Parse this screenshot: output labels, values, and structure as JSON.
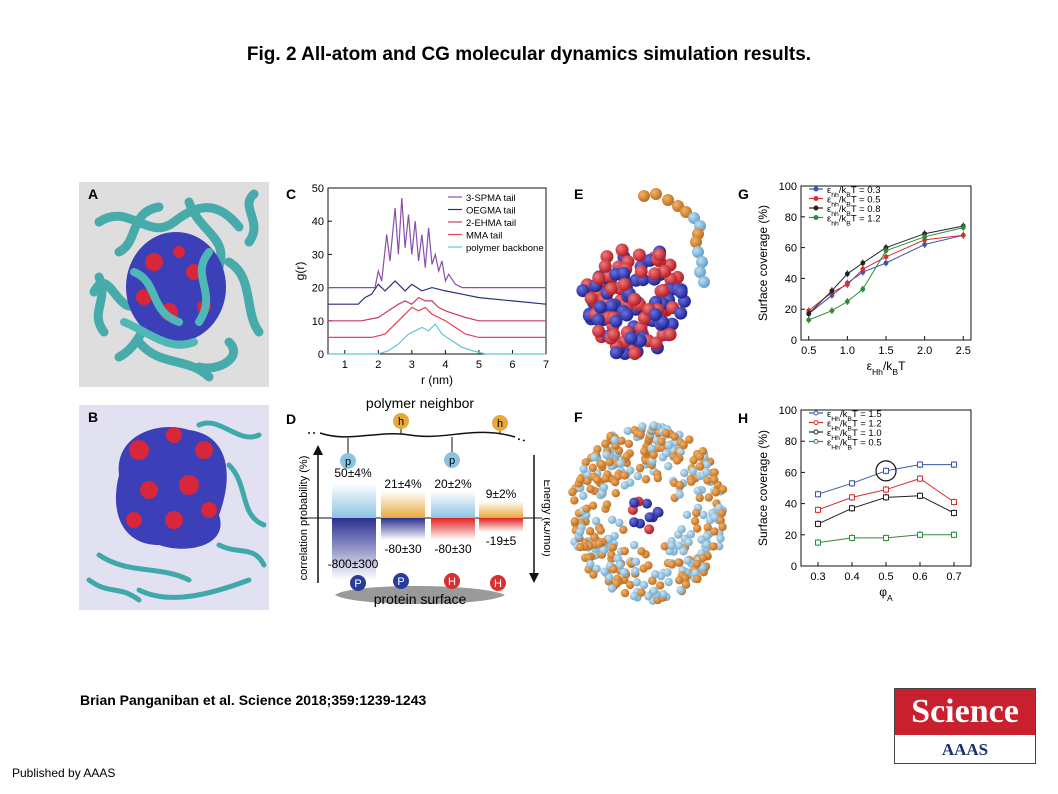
{
  "title": "Fig. 2 All-atom and CG molecular dynamics simulation results.",
  "citation": "Brian Panganiban et al. Science 2018;359:1239-1243",
  "publisher": "Published by AAAS",
  "logo": {
    "name": "Science",
    "sub": "AAAS"
  },
  "panel_labels": {
    "A": "A",
    "B": "B",
    "C": "C",
    "D": "D",
    "E": "E",
    "F": "F",
    "G": "G",
    "H": "H"
  },
  "colors": {
    "cyan": "#3fa9a9",
    "blue": "#3b3fb8",
    "red": "#d8263a",
    "orange": "#d98b2b",
    "lightblue": "#8cc3e3"
  },
  "panel_d": {
    "top_label": "polymer neighbor",
    "bottom_label": "protein surface",
    "left_axis": "correlation probability (%)",
    "right_axis": "Energy (kJ/mol)",
    "bead_top": [
      "p",
      "h",
      "p",
      "h"
    ],
    "bead_bottom": [
      "P",
      "P",
      "H",
      "H"
    ],
    "prob_labels": [
      "50±4%",
      "21±4%",
      "20±2%",
      "9±2%"
    ],
    "prob_values": [
      50,
      21,
      20,
      9
    ],
    "energy_labels": [
      "-800±300",
      "-80±30",
      "-80±30",
      "-19±5"
    ],
    "energy_values": [
      -800,
      -80,
      -80,
      -19
    ]
  },
  "chart_data": [
    {
      "panel": "C",
      "type": "line",
      "xlabel": "r (nm)",
      "ylabel": "g(r)",
      "xlim": [
        0.5,
        7
      ],
      "ylim": [
        0,
        50
      ],
      "xticks": [
        "1",
        "2",
        "3",
        "4",
        "5",
        "6",
        "7"
      ],
      "yticks": [
        "0",
        "10",
        "20",
        "30",
        "40",
        "50"
      ],
      "legend_position": "top-right",
      "series": [
        {
          "name": "3-SPMA tail",
          "color": "#8a4fa8",
          "x": [
            0.5,
            1.5,
            1.9,
            2.0,
            2.1,
            2.25,
            2.35,
            2.5,
            2.6,
            2.7,
            2.8,
            2.9,
            3.0,
            3.1,
            3.2,
            3.3,
            3.4,
            3.5,
            3.6,
            3.7,
            3.8,
            3.9,
            4.0,
            4.1,
            4.3,
            4.5,
            5.0,
            7.0
          ],
          "y": [
            20,
            20,
            20,
            25,
            22,
            36,
            28,
            44,
            30,
            47,
            32,
            42,
            30,
            40,
            28,
            36,
            26,
            38,
            27,
            30,
            25,
            28,
            22,
            24,
            21,
            20,
            20,
            20
          ]
        },
        {
          "name": "OEGMA tail",
          "color": "#2a2f7a",
          "x": [
            0.5,
            1.0,
            1.4,
            1.6,
            1.8,
            2.0,
            2.2,
            2.5,
            2.8,
            3.0,
            3.3,
            3.6,
            4.0,
            4.5,
            5.0,
            6.0,
            7.0
          ],
          "y": [
            15,
            15,
            15,
            17,
            18,
            21,
            19,
            22,
            19,
            21,
            19,
            20,
            19,
            18,
            17,
            16,
            15
          ]
        },
        {
          "name": "2-EHMA tail",
          "color": "#c93a67",
          "x": [
            0.5,
            1.5,
            2.0,
            2.3,
            2.6,
            2.8,
            3.0,
            3.2,
            3.4,
            3.6,
            3.8,
            4.0,
            4.3,
            4.6,
            5.0,
            6.0,
            7.0
          ],
          "y": [
            10,
            10,
            11,
            13,
            15,
            16,
            15,
            17,
            16,
            16,
            14,
            13,
            12,
            11,
            10,
            10,
            10
          ]
        },
        {
          "name": "MMA tail",
          "color": "#e0435b",
          "x": [
            0.5,
            1.8,
            2.2,
            2.5,
            2.8,
            3.0,
            3.2,
            3.4,
            3.6,
            3.8,
            4.0,
            4.3,
            4.6,
            5.0,
            6.0,
            7.0
          ],
          "y": [
            5,
            5,
            6,
            9,
            12,
            14,
            13,
            14,
            12,
            11,
            10,
            8,
            6,
            5,
            5,
            5
          ]
        },
        {
          "name": "polymer backbone",
          "color": "#5cc6d6",
          "x": [
            0.5,
            2.0,
            2.3,
            2.6,
            2.9,
            3.1,
            3.3,
            3.5,
            3.7,
            3.9,
            4.2,
            4.5,
            4.8,
            5.2,
            6.0,
            7.0
          ],
          "y": [
            0,
            0,
            1,
            3,
            6,
            7,
            8,
            7,
            9,
            6,
            4,
            2,
            1,
            0,
            0,
            0
          ]
        }
      ]
    },
    {
      "panel": "G",
      "type": "line",
      "xlabel": "εHh/kBT",
      "ylabel": "Surface coverage (%)",
      "xlim": [
        0.4,
        2.6
      ],
      "ylim": [
        0,
        100
      ],
      "xticks": [
        "0.5",
        "1.0",
        "1.5",
        "2.0",
        "2.5"
      ],
      "yticks": [
        "0",
        "20",
        "40",
        "60",
        "80",
        "100"
      ],
      "legend_position": "top-left",
      "x": [
        0.5,
        0.8,
        1.0,
        1.2,
        1.5,
        2.0,
        2.5
      ],
      "series": [
        {
          "name": "εhh/kBT = 0.3",
          "color": "#3a55b0",
          "values": [
            17,
            29,
            37,
            44,
            50,
            62,
            68
          ]
        },
        {
          "name": "εhh/kBT = 0.5",
          "color": "#d83030",
          "values": [
            19,
            31,
            36,
            46,
            54,
            65,
            68
          ]
        },
        {
          "name": "εhh/kBT = 0.8",
          "color": "#222222",
          "values": [
            17,
            32,
            43,
            50,
            60,
            69,
            74
          ]
        },
        {
          "name": "εhh/kBT = 1.2",
          "color": "#2e8b3a",
          "values": [
            13,
            19,
            25,
            33,
            58,
            67,
            73
          ]
        }
      ]
    },
    {
      "panel": "H",
      "type": "line",
      "xlabel": "φA",
      "ylabel": "Surface coverage (%)",
      "xlim": [
        0.25,
        0.75
      ],
      "ylim": [
        0,
        100
      ],
      "xticks": [
        "0.3",
        "0.4",
        "0.5",
        "0.6",
        "0.7"
      ],
      "yticks": [
        "0",
        "20",
        "40",
        "60",
        "80",
        "100"
      ],
      "legend_position": "top-left",
      "x": [
        0.3,
        0.4,
        0.5,
        0.6,
        0.7
      ],
      "series": [
        {
          "name": "εHh/kBT = 1.5",
          "color": "#3a55b0",
          "values": [
            46,
            53,
            61,
            65,
            65
          ]
        },
        {
          "name": "εHh/kBT = 1.2",
          "color": "#d83030",
          "values": [
            36,
            44,
            49,
            56,
            41
          ]
        },
        {
          "name": "εHh/kBT = 1.0",
          "color": "#222222",
          "values": [
            27,
            37,
            44,
            45,
            34
          ]
        },
        {
          "name": "εHh/kBT = 0.5",
          "color": "#2e8b3a",
          "values": [
            15,
            18,
            18,
            20,
            20
          ]
        }
      ]
    }
  ]
}
